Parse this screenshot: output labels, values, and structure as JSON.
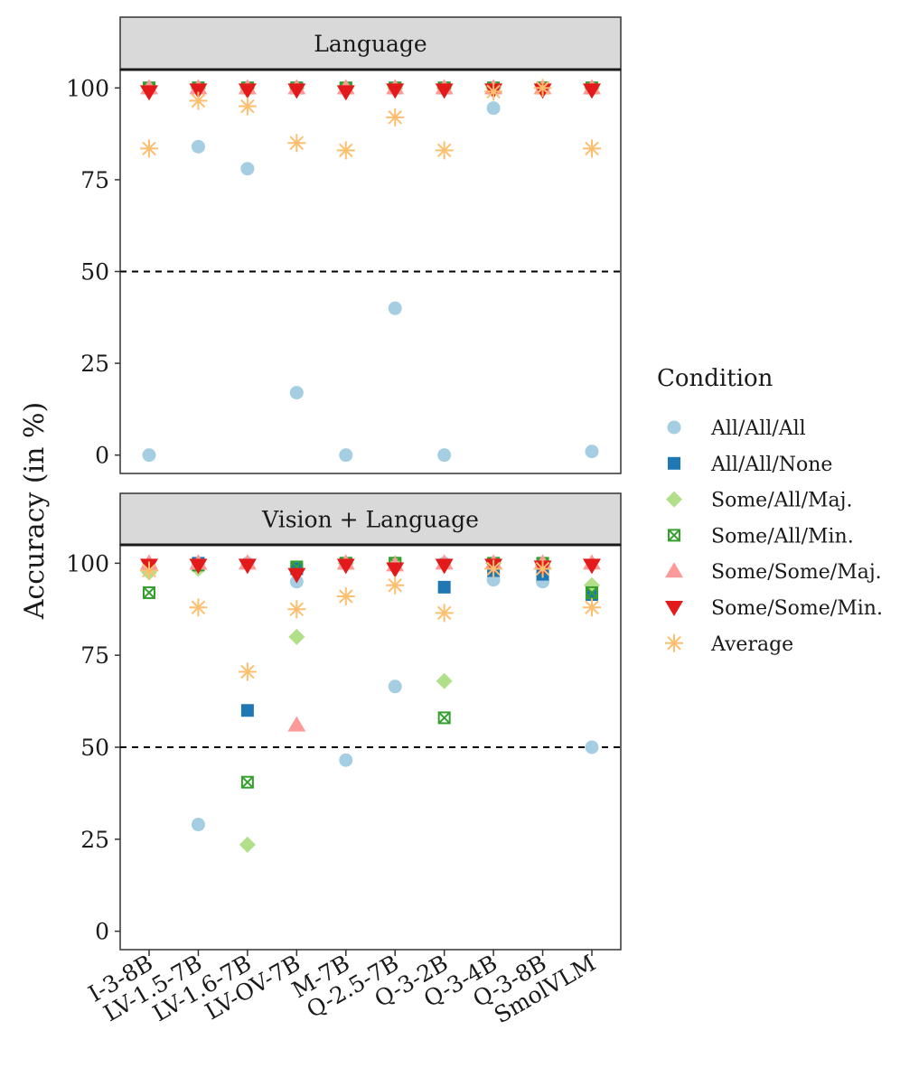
{
  "chart_data": {
    "type": "scatter",
    "ylabel": "Accuracy (in %)",
    "ylim": [
      -5,
      105
    ],
    "yticks": [
      0,
      25,
      50,
      75,
      100
    ],
    "reference_line": 50,
    "categories": [
      "I-3-8B",
      "LV-1.5-7B",
      "LV-1.6-7B",
      "LV-OV-7B",
      "M-7B",
      "Q-2.5-7B",
      "Q-3-2B",
      "Q-3-4B",
      "Q-3-8B",
      "SmolVLM"
    ],
    "legend": {
      "title": "Condition",
      "position": "right",
      "entries": [
        {
          "name": "All/All/All",
          "shape": "circle",
          "color": "#a6cee3"
        },
        {
          "name": "All/All/None",
          "shape": "square",
          "color": "#1f78b4"
        },
        {
          "name": "Some/All/Maj.",
          "shape": "diamond",
          "color": "#b2df8a"
        },
        {
          "name": "Some/All/Min.",
          "shape": "boxed-x",
          "color": "#33a02c"
        },
        {
          "name": "Some/Some/Maj.",
          "shape": "triangle-up",
          "color": "#fb9a99"
        },
        {
          "name": "Some/Some/Min.",
          "shape": "triangle-down",
          "color": "#e31a1c"
        },
        {
          "name": "Average",
          "shape": "asterisk",
          "color": "#fdbf6f"
        }
      ]
    },
    "panels": [
      {
        "title": "Language",
        "series": [
          {
            "name": "All/All/All",
            "values": [
              0,
              84,
              78,
              17,
              0,
              40,
              0,
              94.5,
              100,
              1
            ]
          },
          {
            "name": "All/All/None",
            "values": [
              100,
              100,
              100,
              100,
              100,
              100,
              100,
              100,
              100,
              100
            ]
          },
          {
            "name": "Some/All/Maj.",
            "values": [
              100,
              100,
              100,
              100,
              100,
              100,
              100,
              100,
              100,
              100
            ]
          },
          {
            "name": "Some/All/Min.",
            "values": [
              100,
              100,
              100,
              100,
              100,
              100,
              100,
              100,
              100,
              100
            ]
          },
          {
            "name": "Some/Some/Maj.",
            "values": [
              100,
              100,
              100,
              100,
              100,
              100,
              100,
              100,
              100,
              100
            ]
          },
          {
            "name": "Some/Some/Min.",
            "values": [
              99,
              99.5,
              99.5,
              99.5,
              99,
              99.5,
              99.5,
              99.5,
              99.5,
              99.5
            ]
          },
          {
            "name": "Average",
            "values": [
              83.5,
              96.5,
              95,
              85,
              83,
              92,
              83,
              99,
              100,
              83.5
            ]
          }
        ]
      },
      {
        "title": "Vision + Language",
        "series": [
          {
            "name": "All/All/All",
            "values": [
              99,
              29,
              100,
              95,
              46.5,
              66.5,
              100,
              95.5,
              95,
              50
            ]
          },
          {
            "name": "All/All/None",
            "values": [
              99,
              100,
              60,
              98.5,
              100,
              100,
              93.5,
              98,
              97,
              91.5
            ]
          },
          {
            "name": "Some/All/Maj.",
            "values": [
              97.5,
              98.5,
              23.5,
              80,
              100,
              100,
              68,
              100,
              99.5,
              94
            ]
          },
          {
            "name": "Some/All/Min.",
            "values": [
              92,
              99.5,
              40.5,
              99,
              100,
              100,
              58,
              100,
              100,
              92
            ]
          },
          {
            "name": "Some/Some/Maj.",
            "values": [
              100,
              100,
              100,
              56,
              100,
              99.5,
              100,
              100,
              100,
              100
            ]
          },
          {
            "name": "Some/Some/Min.",
            "values": [
              99.5,
              99.5,
              99.5,
              97,
              99.5,
              98.5,
              99.5,
              99.5,
              99,
              99.5
            ]
          },
          {
            "name": "Average",
            "values": [
              98,
              88,
              70.5,
              87.5,
              91,
              94,
              86.5,
              98.5,
              98.5,
              88
            ]
          }
        ]
      }
    ]
  }
}
